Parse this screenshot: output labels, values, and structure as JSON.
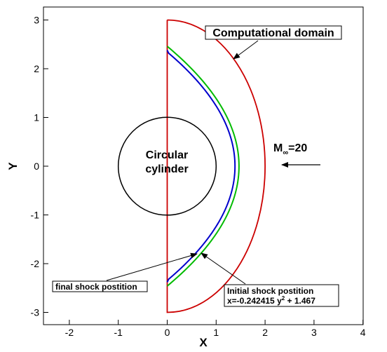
{
  "chart_data": {
    "type": "line",
    "xlabel": "X",
    "ylabel": "Y",
    "xlim": [
      -2.5,
      4
    ],
    "ylim": [
      -3.2,
      3.2
    ],
    "x_ticks": [
      -2,
      -1,
      0,
      1,
      2,
      3,
      4
    ],
    "y_ticks": [
      -3,
      -2,
      -1,
      0,
      1,
      2,
      3
    ],
    "x_tick_labels": [
      "-2",
      "-1",
      "0",
      "1",
      "2",
      "3",
      "4"
    ],
    "y_tick_labels": [
      "-3",
      "-2",
      "-1",
      "0",
      "1",
      "2",
      "3"
    ],
    "cylinder": {
      "center": [
        0,
        0
      ],
      "radius": 1,
      "label_line1": "Circular",
      "label_line2": "cylinder"
    },
    "series": [
      {
        "name": "Computational domain",
        "color": "#cc0000",
        "shape": "semicircle",
        "radius": 3,
        "x_at_center": 2
      },
      {
        "name": "Initial shock postition",
        "color": "#00bb00",
        "a": -0.242415,
        "b": 1.467,
        "y_range": [
          -2.46,
          2.46
        ]
      },
      {
        "name": "final shock postition",
        "color": "#0000cc",
        "a": -0.252,
        "b": 1.385,
        "y_range": [
          -2.38,
          2.38
        ]
      }
    ],
    "annotations": {
      "domain_label": "Computational domain",
      "initial_label_line1": "Initial shock postition",
      "initial_label_line2": "x=-0.242415 y",
      "initial_label_exp": "2",
      "initial_label_tail": " + 1.467",
      "final_label": "final shock postition",
      "mach_M": "M",
      "mach_sub": "∞",
      "mach_value": "=20"
    }
  }
}
